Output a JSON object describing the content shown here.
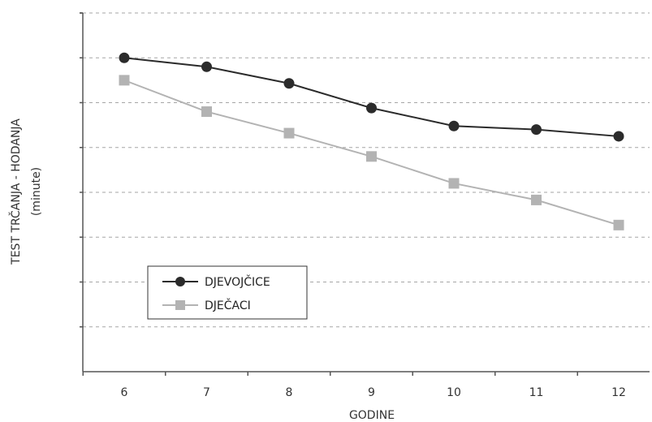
{
  "chart_data": {
    "type": "line",
    "title": "",
    "xlabel": "GODINE",
    "ylabel": "TEST TRČANJA - HODANJA",
    "ylabel_unit": "(minute)",
    "x": [
      6,
      7,
      8,
      9,
      10,
      11,
      12
    ],
    "xlim": [
      5.5,
      12.35
    ],
    "ylim": [
      0,
      8
    ],
    "grid": "horizontal dashed",
    "legend_position": "lower-left",
    "series": [
      {
        "name": "DJEVOJČICE",
        "marker": "circle",
        "color": "#2b2b2b",
        "values": [
          7.0,
          6.8,
          6.43,
          5.88,
          5.48,
          5.4,
          5.25
        ]
      },
      {
        "name": "DJEČACI",
        "marker": "square",
        "color": "#b3b3b3",
        "values": [
          6.5,
          5.8,
          5.32,
          4.8,
          4.2,
          3.83,
          3.27
        ]
      }
    ]
  }
}
